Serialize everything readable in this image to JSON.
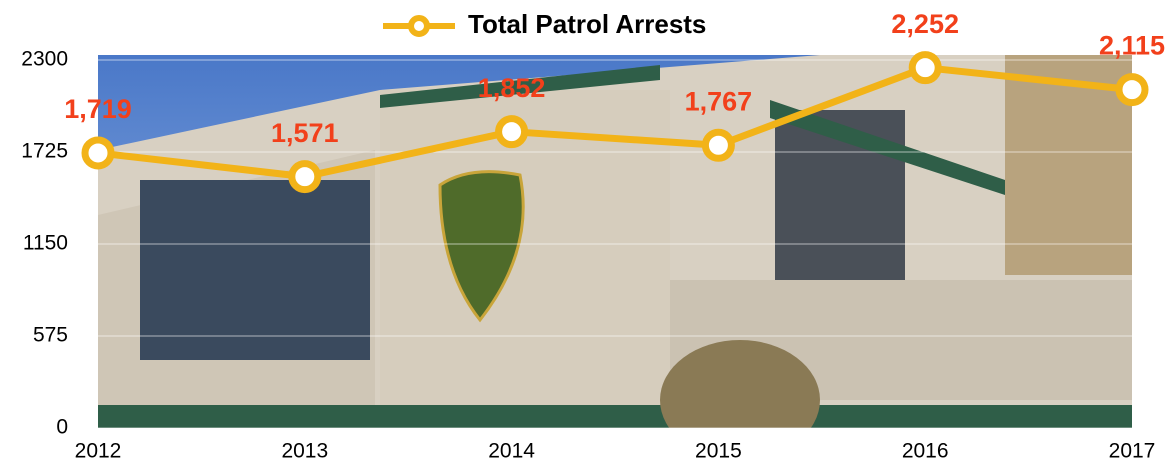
{
  "chart_data": {
    "type": "line",
    "title": "Total Patrol Arrests",
    "categories": [
      "2012",
      "2013",
      "2014",
      "2015",
      "2016",
      "2017"
    ],
    "series": [
      {
        "name": "Total Patrol Arrests",
        "color": "#f2b318",
        "values": [
          1719,
          1571,
          1852,
          1767,
          2252,
          2115
        ],
        "value_labels": [
          "1,719",
          "1,571",
          "1,852",
          "1,767",
          "2,252",
          "2,115"
        ]
      }
    ],
    "ylim": [
      0,
      2300
    ],
    "yticks": [
      0,
      575,
      1150,
      1725,
      2300
    ],
    "grid": true
  }
}
